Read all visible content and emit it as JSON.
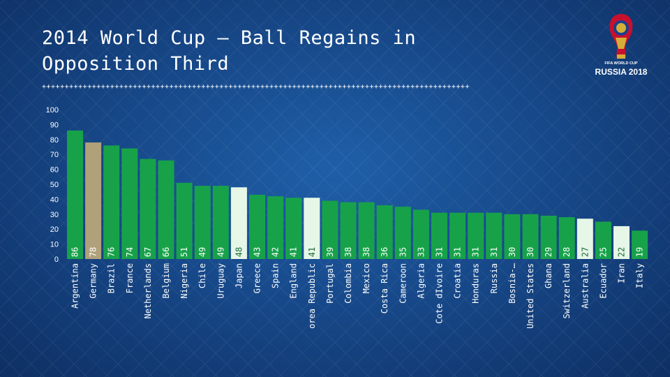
{
  "title": "2014 World Cup – Ball Regains in Opposition Third",
  "divider": "++++++++++++++++++++++++++++++++++++++++++++++++++++++++++++++++++++++++++++++++++++++++++++++",
  "logo": {
    "line1": "FIFA WORLD CUP",
    "line2": "RUSSIA 2018",
    "icon": "world-cup-trophy-icon"
  },
  "colors": {
    "default_bar": "#17a24a",
    "germany_bar": "#b0a17b",
    "highlight_bar": "#e6f7e8"
  },
  "chart_data": {
    "type": "bar",
    "title": "2014 World Cup – Ball Regains in Opposition Third",
    "xlabel": "",
    "ylabel": "",
    "ylim": [
      0,
      100
    ],
    "yticks": [
      0,
      10,
      20,
      30,
      40,
      50,
      60,
      70,
      80,
      90,
      100
    ],
    "grid": false,
    "categories": [
      "Argentina",
      "Germany",
      "Brazil",
      "France",
      "Netherlands",
      "Belgium",
      "Nigeria",
      "Chile",
      "Uruguay",
      "Japan",
      "Greece",
      "Spain",
      "England",
      "Korea Republic",
      "Portugal",
      "Colombia",
      "Mexico",
      "Costa Rica",
      "Cameroon",
      "Algeria",
      "Cote dIvoire",
      "Croatia",
      "Honduras",
      "Russia",
      "Bosnia-…",
      "United States",
      "Ghana",
      "Switzerland",
      "Australia",
      "Ecuador",
      "Iran",
      "Italy"
    ],
    "values": [
      86,
      78,
      76,
      74,
      67,
      66,
      51,
      49,
      49,
      48,
      43,
      42,
      41,
      41,
      39,
      38,
      38,
      36,
      35,
      33,
      31,
      31,
      31,
      31,
      30,
      30,
      29,
      28,
      27,
      25,
      22,
      19
    ],
    "bar_styles": [
      "default",
      "germany",
      "default",
      "default",
      "default",
      "default",
      "default",
      "default",
      "default",
      "highlight",
      "default",
      "default",
      "default",
      "highlight",
      "default",
      "default",
      "default",
      "default",
      "default",
      "default",
      "default",
      "default",
      "default",
      "default",
      "default",
      "default",
      "default",
      "default",
      "highlight",
      "default",
      "highlight",
      "default"
    ]
  }
}
